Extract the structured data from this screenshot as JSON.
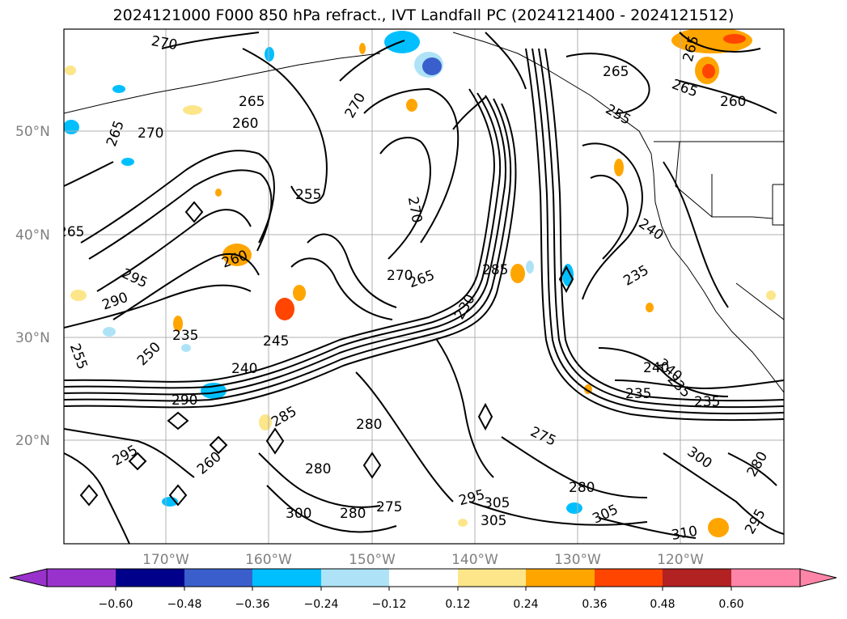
{
  "title": "2024121000 F000 850 hPa refract., IVT Landfall PC (2024121400 - 2024121512)",
  "latitude_labels": [
    "50°N",
    "40°N",
    "30°N",
    "20°N"
  ],
  "longitude_labels": [
    "170°W",
    "160°W",
    "150°W",
    "140°W",
    "130°W",
    "120°W"
  ],
  "contour_labels": [
    "270",
    "265",
    "270",
    "265",
    "260",
    "270",
    "265",
    "265",
    "260",
    "255",
    "255",
    "265",
    "270",
    "265",
    "235",
    "285",
    "240",
    "235",
    "230",
    "260",
    "265",
    "290",
    "295",
    "270",
    "245",
    "235",
    "250",
    "240",
    "255",
    "280",
    "280",
    "240",
    "235",
    "240",
    "235",
    "285",
    "290",
    "275",
    "280",
    "300",
    "305",
    "295",
    "305",
    "310",
    "305",
    "280",
    "295",
    "300",
    "275",
    "280",
    "295",
    "260"
  ],
  "colorbar": {
    "ticks": [
      "−0.60",
      "−0.48",
      "−0.36",
      "−0.24",
      "−0.12",
      "0.12",
      "0.24",
      "0.36",
      "0.48",
      "0.60"
    ],
    "colors": [
      "#9932cc",
      "#00008b",
      "#3a5fcd",
      "#00bfff",
      "#aee3f7",
      "#ffffff",
      "#fde68a",
      "#ffa500",
      "#ff4500",
      "#b22222",
      "#ff85a8"
    ]
  }
}
